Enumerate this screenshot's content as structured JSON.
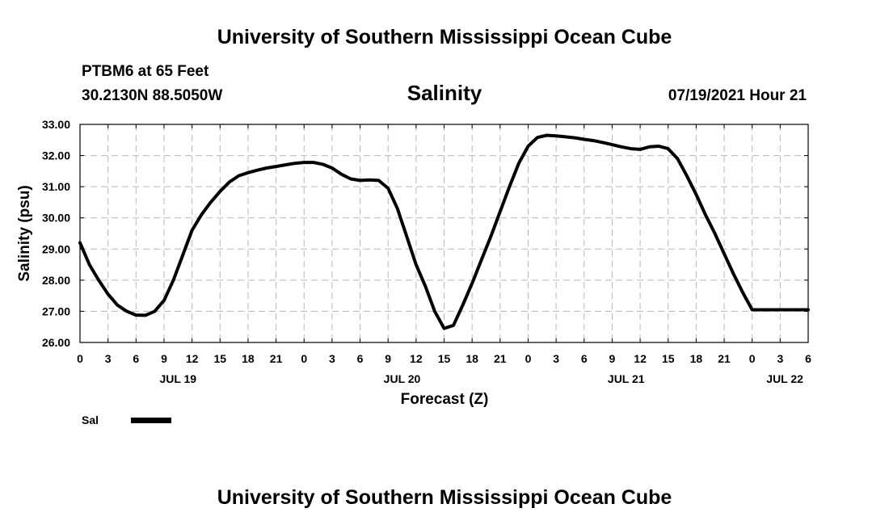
{
  "header": {
    "title": "University of Southern Mississippi Ocean Cube",
    "station": "PTBM6 at 65 Feet",
    "coords": "30.2130N  88.5050W",
    "date": "07/19/2021 Hour 21"
  },
  "footer": {
    "title": "University of Southern Mississippi Ocean Cube"
  },
  "legend": {
    "label": "Sal"
  },
  "colors": {
    "line": "#000000",
    "grid": "#b8b8b8"
  },
  "chart_data": {
    "type": "line",
    "title": "Salinity",
    "ylabel": "Salinity (psu)",
    "xlabel": "Forecast (Z)",
    "xlim": [
      0,
      78
    ],
    "ylim": [
      26.0,
      33.0
    ],
    "grid": true,
    "legend_position": "bottom-left",
    "x_tick_values": [
      0,
      3,
      6,
      9,
      12,
      15,
      18,
      21,
      24,
      27,
      30,
      33,
      36,
      39,
      42,
      45,
      48,
      51,
      54,
      57,
      60,
      63,
      66,
      69,
      72,
      75,
      78
    ],
    "x_tick_labels": [
      "0",
      "3",
      "6",
      "9",
      "12",
      "15",
      "18",
      "21",
      "0",
      "3",
      "6",
      "9",
      "12",
      "15",
      "18",
      "21",
      "0",
      "3",
      "6",
      "9",
      "12",
      "15",
      "18",
      "21",
      "0",
      "3",
      "6"
    ],
    "day_labels": [
      {
        "x": 10.5,
        "label": "JUL 19"
      },
      {
        "x": 34.5,
        "label": "JUL 20"
      },
      {
        "x": 58.5,
        "label": "JUL 21"
      },
      {
        "x": 75.5,
        "label": "JUL 22"
      }
    ],
    "y_tick_values": [
      26,
      27,
      28,
      29,
      30,
      31,
      32,
      33
    ],
    "y_tick_labels": [
      "26.00",
      "27.00",
      "28.00",
      "29.00",
      "30.00",
      "31.00",
      "32.00",
      "33.00"
    ],
    "series": [
      {
        "name": "Sal",
        "x": [
          0,
          1,
          2,
          3,
          4,
          5,
          6,
          7,
          8,
          9,
          10,
          11,
          12,
          13,
          14,
          15,
          16,
          17,
          18,
          19,
          20,
          21,
          22,
          23,
          24,
          25,
          26,
          27,
          28,
          29,
          30,
          31,
          32,
          33,
          34,
          35,
          36,
          37,
          38,
          39,
          40,
          41,
          42,
          43,
          44,
          45,
          46,
          47,
          48,
          49,
          50,
          51,
          52,
          53,
          54,
          55,
          56,
          57,
          58,
          59,
          60,
          61,
          62,
          63,
          64,
          65,
          66,
          67,
          68,
          69,
          70,
          71,
          72,
          73,
          74,
          75,
          76,
          77,
          78
        ],
        "values": [
          29.2,
          28.5,
          28.0,
          27.55,
          27.2,
          27.0,
          26.88,
          26.87,
          27.0,
          27.35,
          28.0,
          28.8,
          29.6,
          30.1,
          30.5,
          30.85,
          31.15,
          31.35,
          31.45,
          31.53,
          31.6,
          31.65,
          31.7,
          31.75,
          31.78,
          31.78,
          31.72,
          31.6,
          31.4,
          31.25,
          31.2,
          31.22,
          31.2,
          30.95,
          30.3,
          29.4,
          28.5,
          27.8,
          27.0,
          26.45,
          26.55,
          27.2,
          27.9,
          28.65,
          29.4,
          30.2,
          31.0,
          31.75,
          32.3,
          32.58,
          32.65,
          32.63,
          32.6,
          32.57,
          32.52,
          32.48,
          32.42,
          32.35,
          32.28,
          32.22,
          32.2,
          32.28,
          32.3,
          32.22,
          31.9,
          31.35,
          30.75,
          30.1,
          29.5,
          28.85,
          28.2,
          27.6,
          27.05,
          27.05,
          27.05,
          27.05,
          27.05,
          27.05,
          27.05
        ]
      }
    ]
  }
}
